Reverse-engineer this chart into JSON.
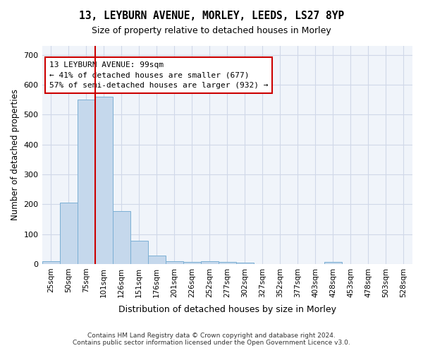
{
  "title": "13, LEYBURN AVENUE, MORLEY, LEEDS, LS27 8YP",
  "subtitle": "Size of property relative to detached houses in Morley",
  "xlabel": "Distribution of detached houses by size in Morley",
  "ylabel": "Number of detached properties",
  "bar_color": "#c5d8ec",
  "bar_edge_color": "#7bafd4",
  "grid_color": "#d0d8e8",
  "background_color": "#f0f4fa",
  "bin_labels": [
    "25sqm",
    "50sqm",
    "75sqm",
    "101sqm",
    "126sqm",
    "151sqm",
    "176sqm",
    "201sqm",
    "226sqm",
    "252sqm",
    "277sqm",
    "302sqm",
    "327sqm",
    "352sqm",
    "377sqm",
    "403sqm",
    "428sqm",
    "453sqm",
    "478sqm",
    "503sqm",
    "528sqm"
  ],
  "bar_values": [
    10,
    205,
    550,
    560,
    178,
    78,
    27,
    10,
    8,
    10,
    8,
    5,
    0,
    0,
    0,
    0,
    8,
    0,
    0,
    0,
    0
  ],
  "ylim": [
    0,
    730
  ],
  "yticks": [
    0,
    100,
    200,
    300,
    400,
    500,
    600,
    700
  ],
  "property_bin_index": 2,
  "vline_color": "#cc0000",
  "annotation_text": "13 LEYBURN AVENUE: 99sqm\n← 41% of detached houses are smaller (677)\n57% of semi-detached houses are larger (932) →",
  "annotation_box_color": "#ffffff",
  "annotation_box_edge_color": "#cc0000",
  "footer_line1": "Contains HM Land Registry data © Crown copyright and database right 2024.",
  "footer_line2": "Contains public sector information licensed under the Open Government Licence v3.0."
}
